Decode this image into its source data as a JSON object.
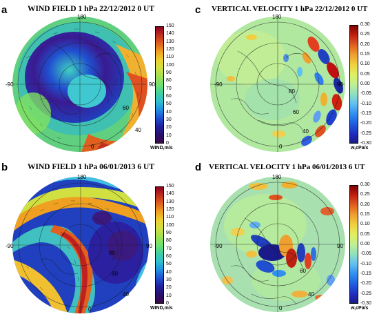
{
  "panels": [
    {
      "letter": "a",
      "title": "WIND FIELD 1 hPa 22/12/2012 0 UT",
      "type": "wind",
      "labels": {
        "top": "180",
        "left": "-90",
        "right": "90",
        "bottom": "0",
        "lat_a": "60",
        "lat_b": "40"
      },
      "colorbar": {
        "ticks": [
          "150",
          "140",
          "130",
          "120",
          "110",
          "100",
          "90",
          "80",
          "70",
          "60",
          "50",
          "40",
          "30",
          "20",
          "10",
          "0"
        ],
        "unit": "WIND,m/s"
      }
    },
    {
      "letter": "c",
      "title": "VERTICAL VELOCITY 1 hPa 22/12/2012 0 UT",
      "type": "vv",
      "labels": {
        "top": "180",
        "left": "-90",
        "right": "90",
        "bottom": "0",
        "lat_a": "80",
        "lat_b": "60",
        "lat_c": "40"
      },
      "colorbar": {
        "ticks": [
          "0.30",
          "0.25",
          "0.20",
          "0.15",
          "0.10",
          "0.05",
          "0.00",
          "-0.05",
          "-0.10",
          "-0.15",
          "-0.20",
          "-0.25",
          "-0.30"
        ],
        "unit": "w,cPa/s"
      }
    },
    {
      "letter": "b",
      "title": "WIND FIELD 1 hPa 06/01/2013 6 UT",
      "type": "wind",
      "labels": {
        "top": "180",
        "left": "-90",
        "right": "90",
        "bottom": "0",
        "lat_a": "80",
        "lat_b": "60",
        "lat_c": "40"
      },
      "colorbar": {
        "ticks": [
          "150",
          "140",
          "130",
          "120",
          "110",
          "100",
          "90",
          "80",
          "70",
          "60",
          "50",
          "40",
          "30",
          "20",
          "10",
          "0"
        ],
        "unit": "WIND,m/s"
      }
    },
    {
      "letter": "d",
      "title": "VERTICAL VELOCITY 1 hPa 06/01/2013 6 UT",
      "type": "vv",
      "labels": {
        "top": "180",
        "left": "-90",
        "right": "90",
        "bottom": "0",
        "lat_a": "60",
        "lat_b": "40"
      },
      "colorbar": {
        "ticks": [
          "0.30",
          "0.25",
          "0.20",
          "0.15",
          "0.10",
          "0.05",
          "0.00",
          "-0.05",
          "-0.10",
          "-0.15",
          "-0.20",
          "-0.25",
          "-0.30"
        ],
        "unit": "w,cPa/s"
      }
    }
  ],
  "colors": {
    "wind_scale": [
      "#3a0a4a",
      "#2a1070",
      "#2020a0",
      "#2050d0",
      "#2090e0",
      "#30c0d0",
      "#40d0a0",
      "#70e070",
      "#a0e050",
      "#d0e040",
      "#f0d030",
      "#f0a020",
      "#e06020",
      "#c03020",
      "#900020"
    ],
    "vv_scale": [
      "#1a1a8a",
      "#2030c0",
      "#2060e0",
      "#3090f0",
      "#60c0f0",
      "#90e0c0",
      "#c0f090",
      "#e0f060",
      "#f0d040",
      "#f0a030",
      "#e06020",
      "#c02010",
      "#800000"
    ],
    "coast": "#1a1a1a"
  }
}
